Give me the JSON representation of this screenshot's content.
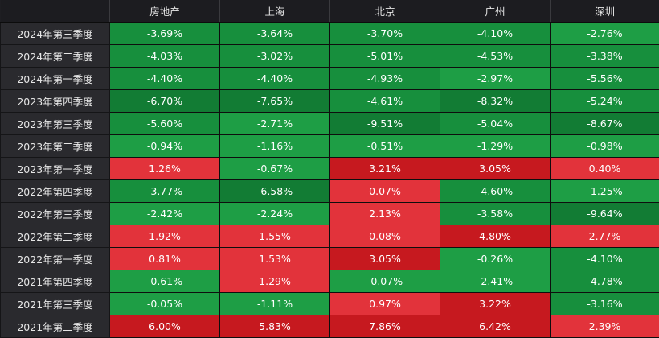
{
  "table": {
    "corner_label": "",
    "columns": [
      "房地产",
      "上海",
      "北京",
      "广州",
      "深圳"
    ],
    "rows": [
      {
        "label": "2024年第三季度",
        "values": [
          "-3.69%",
          "-3.64%",
          "-3.70%",
          "-4.10%",
          "-2.76%"
        ],
        "shades": [
          "neg-mid",
          "neg-mid",
          "neg-mid",
          "neg-mid",
          "neg-light"
        ]
      },
      {
        "label": "2024年第二季度",
        "values": [
          "-4.03%",
          "-3.02%",
          "-5.01%",
          "-4.53%",
          "-3.38%"
        ],
        "shades": [
          "neg-mid",
          "neg-mid",
          "neg-mid",
          "neg-mid",
          "neg-mid"
        ]
      },
      {
        "label": "2024年第一季度",
        "values": [
          "-4.40%",
          "-4.40%",
          "-4.93%",
          "-2.97%",
          "-5.56%"
        ],
        "shades": [
          "neg-mid",
          "neg-mid",
          "neg-mid",
          "neg-light",
          "neg-mid"
        ]
      },
      {
        "label": "2023年第四季度",
        "values": [
          "-6.70%",
          "-7.65%",
          "-4.61%",
          "-8.32%",
          "-5.24%"
        ],
        "shades": [
          "neg-dark",
          "neg-dark",
          "neg-mid",
          "neg-dark",
          "neg-mid"
        ]
      },
      {
        "label": "2023年第三季度",
        "values": [
          "-5.60%",
          "-2.71%",
          "-9.51%",
          "-5.04%",
          "-8.67%"
        ],
        "shades": [
          "neg-mid",
          "neg-light",
          "neg-dark",
          "neg-mid",
          "neg-dark"
        ]
      },
      {
        "label": "2023年第二季度",
        "values": [
          "-0.94%",
          "-1.16%",
          "-0.51%",
          "-1.29%",
          "-0.98%"
        ],
        "shades": [
          "neg-light",
          "neg-light",
          "neg-light",
          "neg-light",
          "neg-light"
        ]
      },
      {
        "label": "2023年第一季度",
        "values": [
          "1.26%",
          "-0.67%",
          "3.21%",
          "3.05%",
          "0.40%"
        ],
        "shades": [
          "pos-light",
          "neg-light",
          "pos-dark",
          "pos-dark",
          "pos-light"
        ]
      },
      {
        "label": "2022年第四季度",
        "values": [
          "-3.77%",
          "-6.58%",
          "0.07%",
          "-4.60%",
          "-1.25%"
        ],
        "shades": [
          "neg-mid",
          "neg-dark",
          "pos-light",
          "neg-mid",
          "neg-light"
        ]
      },
      {
        "label": "2022年第三季度",
        "values": [
          "-2.42%",
          "-2.24%",
          "2.13%",
          "-3.58%",
          "-9.64%"
        ],
        "shades": [
          "neg-light",
          "neg-light",
          "pos-light",
          "neg-mid",
          "neg-dark"
        ]
      },
      {
        "label": "2022年第二季度",
        "values": [
          "1.92%",
          "1.55%",
          "0.08%",
          "4.80%",
          "2.77%"
        ],
        "shades": [
          "pos-light",
          "pos-light",
          "pos-light",
          "pos-dark",
          "pos-light"
        ]
      },
      {
        "label": "2022年第一季度",
        "values": [
          "0.81%",
          "1.53%",
          "3.05%",
          "-0.26%",
          "-4.10%"
        ],
        "shades": [
          "pos-light",
          "pos-light",
          "pos-dark",
          "neg-light",
          "neg-mid"
        ]
      },
      {
        "label": "2021年第四季度",
        "values": [
          "-0.61%",
          "1.29%",
          "-0.07%",
          "-2.41%",
          "-4.78%"
        ],
        "shades": [
          "neg-light",
          "pos-light",
          "neg-light",
          "neg-light",
          "neg-mid"
        ]
      },
      {
        "label": "2021年第三季度",
        "values": [
          "-0.05%",
          "-1.11%",
          "0.97%",
          "3.22%",
          "-3.16%"
        ],
        "shades": [
          "neg-light",
          "neg-light",
          "pos-light",
          "pos-dark",
          "neg-mid"
        ]
      },
      {
        "label": "2021年第二季度",
        "values": [
          "6.00%",
          "5.83%",
          "7.86%",
          "6.42%",
          "2.39%"
        ],
        "shades": [
          "pos-dark",
          "pos-dark",
          "pos-dark",
          "pos-dark",
          "pos-light"
        ]
      }
    ]
  }
}
